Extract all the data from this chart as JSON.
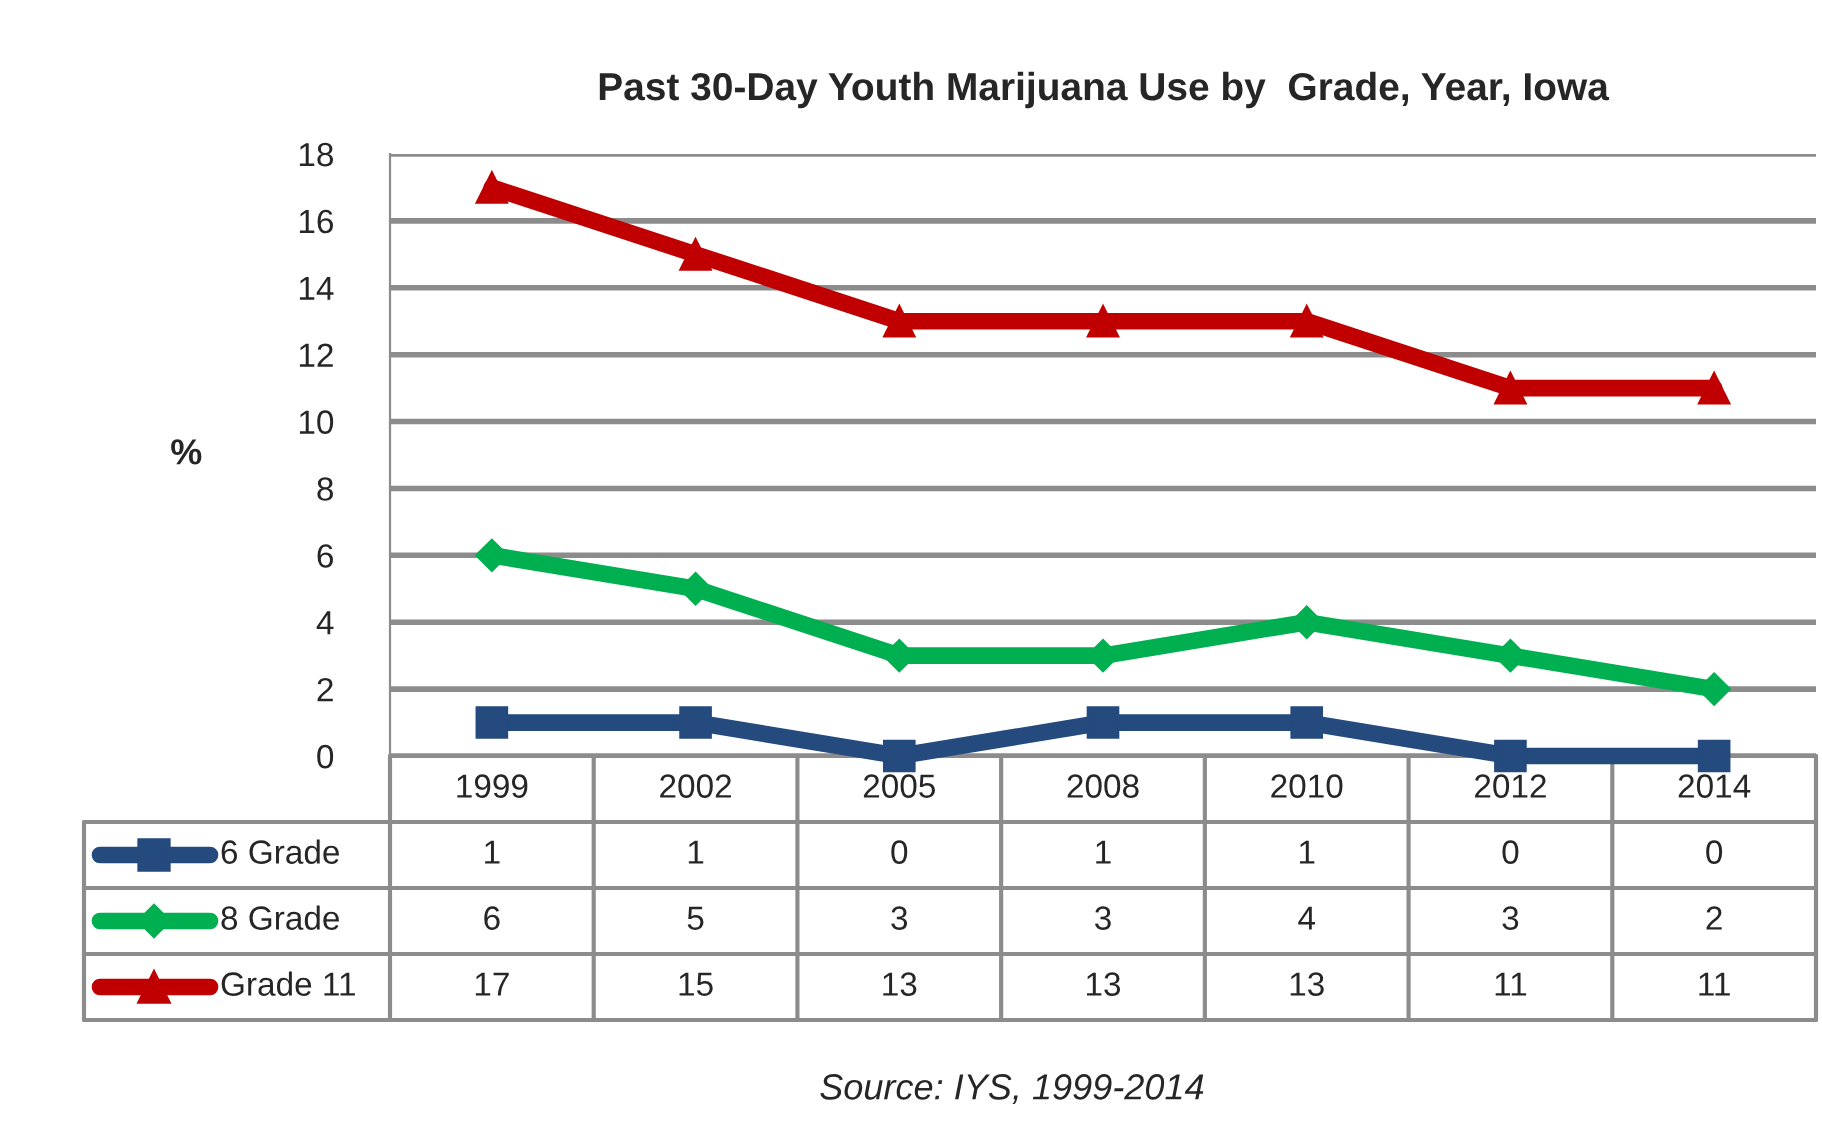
{
  "chart_data": {
    "type": "line",
    "title": "Past 30-Day Youth Marijuana Use by  Grade, Year, Iowa",
    "ylabel": "%",
    "categories": [
      "1999",
      "2002",
      "2005",
      "2008",
      "2010",
      "2012",
      "2014"
    ],
    "series": [
      {
        "name": "6 Grade",
        "color": "#254a7e",
        "marker": "square",
        "values": [
          1,
          1,
          0,
          1,
          1,
          0,
          0
        ]
      },
      {
        "name": "8 Grade",
        "color": "#00b050",
        "marker": "diamond",
        "values": [
          6,
          5,
          3,
          3,
          4,
          3,
          2
        ]
      },
      {
        "name": "Grade 11",
        "color": "#c00000",
        "marker": "triangle",
        "values": [
          17,
          15,
          13,
          13,
          13,
          11,
          11
        ]
      }
    ],
    "ylim": [
      0,
      18
    ],
    "yticks": [
      0,
      2,
      4,
      6,
      8,
      10,
      12,
      14,
      16,
      18
    ],
    "grid": "y",
    "legend": "bottom left",
    "data_labels": true,
    "annotations": [
      "Source: IYS, 1999-2014"
    ]
  }
}
